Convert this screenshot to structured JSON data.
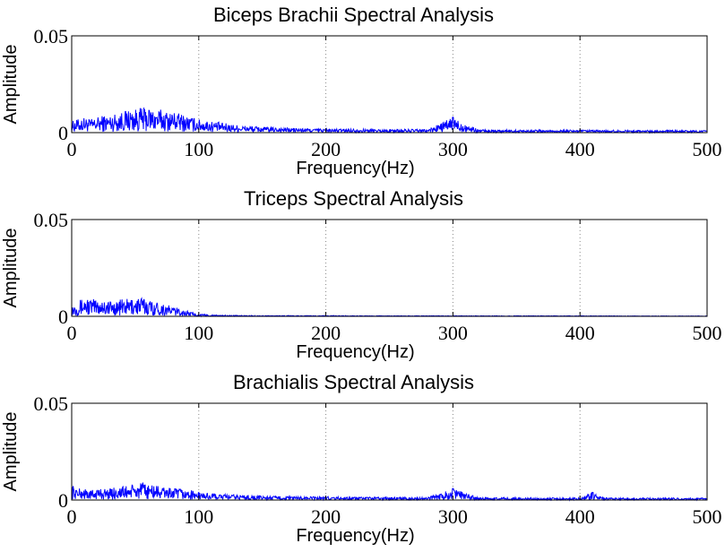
{
  "chart_data": [
    {
      "type": "line",
      "title": "Biceps Brachii Spectral Analysis",
      "xlabel": "Frequency(Hz)",
      "ylabel": "Amplitude",
      "xlim": [
        0,
        500
      ],
      "ylim": [
        0,
        0.05
      ],
      "xticks": [
        "0",
        "100",
        "200",
        "300",
        "400",
        "500"
      ],
      "yticks": [
        "0",
        "0.05"
      ],
      "grid": "x-dotted",
      "series": [
        {
          "color": "#0000ff",
          "x": [
            0,
            5,
            10,
            15,
            20,
            25,
            30,
            35,
            40,
            45,
            50,
            55,
            60,
            65,
            70,
            75,
            80,
            85,
            90,
            95,
            100,
            110,
            120,
            130,
            140,
            150,
            160,
            170,
            180,
            190,
            200,
            220,
            240,
            260,
            280,
            300,
            320,
            340,
            360,
            380,
            400,
            420,
            440,
            460,
            480,
            500
          ],
          "y": [
            0.006,
            0.007,
            0.008,
            0.007,
            0.008,
            0.009,
            0.009,
            0.01,
            0.011,
            0.012,
            0.012,
            0.013,
            0.013,
            0.012,
            0.012,
            0.011,
            0.011,
            0.01,
            0.009,
            0.008,
            0.007,
            0.006,
            0.005,
            0.004,
            0.0035,
            0.003,
            0.0028,
            0.0025,
            0.0023,
            0.0022,
            0.002,
            0.002,
            0.0018,
            0.0018,
            0.0017,
            0.008,
            0.0016,
            0.0015,
            0.0015,
            0.0014,
            0.0014,
            0.0013,
            0.0013,
            0.0013,
            0.0012,
            0.0012
          ]
        }
      ]
    },
    {
      "type": "line",
      "title": "Triceps Spectral Analysis",
      "xlabel": "Frequency(Hz)",
      "ylabel": "Amplitude",
      "xlim": [
        0,
        500
      ],
      "ylim": [
        0,
        0.05
      ],
      "xticks": [
        "0",
        "100",
        "200",
        "300",
        "400",
        "500"
      ],
      "yticks": [
        "0",
        "0.05"
      ],
      "grid": "x-dotted",
      "series": [
        {
          "color": "#0000ff",
          "x": [
            0,
            5,
            10,
            15,
            20,
            25,
            30,
            35,
            40,
            45,
            50,
            55,
            60,
            65,
            70,
            75,
            80,
            85,
            90,
            95,
            100,
            110,
            120,
            130,
            150,
            200,
            250,
            300,
            350,
            400,
            450,
            500
          ],
          "y": [
            0.006,
            0.008,
            0.01,
            0.009,
            0.009,
            0.009,
            0.008,
            0.008,
            0.009,
            0.009,
            0.01,
            0.01,
            0.009,
            0.008,
            0.007,
            0.006,
            0.005,
            0.004,
            0.003,
            0.002,
            0.0012,
            0.0008,
            0.0006,
            0.0005,
            0.0004,
            0.0004,
            0.0003,
            0.0003,
            0.0003,
            0.0003,
            0.0002,
            0.0002
          ]
        }
      ]
    },
    {
      "type": "line",
      "title": "Brachialis Spectral Analysis",
      "xlabel": "Frequency(Hz)",
      "ylabel": "Amplitude",
      "xlim": [
        0,
        500
      ],
      "ylim": [
        0,
        0.05
      ],
      "xticks": [
        "0",
        "100",
        "200",
        "300",
        "400",
        "500"
      ],
      "yticks": [
        "0",
        "0.05"
      ],
      "grid": "x-dotted",
      "series": [
        {
          "color": "#0000ff",
          "x": [
            0,
            5,
            10,
            15,
            20,
            25,
            30,
            35,
            40,
            45,
            50,
            55,
            60,
            65,
            70,
            75,
            80,
            85,
            90,
            95,
            100,
            110,
            120,
            130,
            140,
            150,
            160,
            180,
            200,
            220,
            240,
            260,
            280,
            300,
            320,
            340,
            360,
            380,
            400,
            410,
            420,
            440,
            460,
            480,
            500
          ],
          "y": [
            0.008,
            0.006,
            0.006,
            0.005,
            0.006,
            0.006,
            0.006,
            0.007,
            0.007,
            0.008,
            0.008,
            0.009,
            0.008,
            0.008,
            0.007,
            0.007,
            0.006,
            0.006,
            0.005,
            0.005,
            0.004,
            0.0035,
            0.003,
            0.0028,
            0.0025,
            0.0022,
            0.002,
            0.0018,
            0.0018,
            0.0016,
            0.0015,
            0.0015,
            0.0014,
            0.006,
            0.0013,
            0.0013,
            0.0012,
            0.0012,
            0.0012,
            0.004,
            0.0012,
            0.0011,
            0.0011,
            0.0011,
            0.0011
          ]
        }
      ]
    }
  ]
}
